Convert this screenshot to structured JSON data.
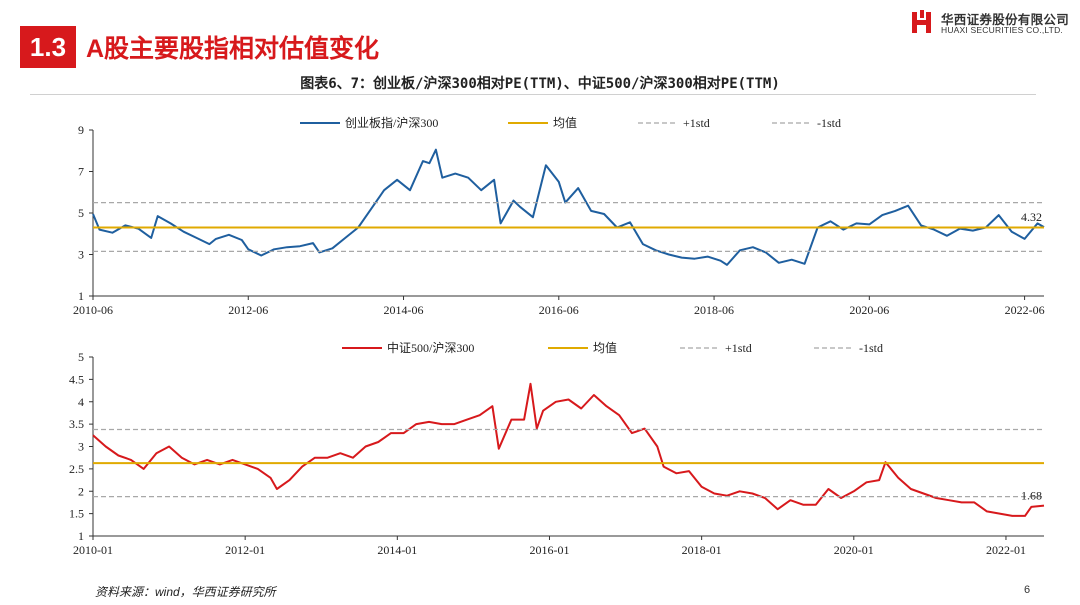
{
  "header": {
    "section_number": "1.3",
    "section_title": "A股主要股指相对估值变化",
    "brand_cn": "华西证券股份有限公司",
    "brand_en": "HUAXI SECURITIES CO.,LTD.",
    "brand_color": "#d7191c"
  },
  "figure_title": "图表6、7：创业板/沪深300相对PE(TTM)、中证500/沪深300相对PE(TTM)",
  "footer": {
    "source": "资料来源：wind，华西证券研究所",
    "page_number": "6"
  },
  "chart_data": [
    {
      "type": "line",
      "title": "",
      "xlabel": "",
      "ylabel": "",
      "ylim": [
        1,
        9
      ],
      "yticks": [
        "1",
        "3",
        "5",
        "7",
        "9"
      ],
      "yticks_values": [
        1,
        3,
        5,
        7,
        9
      ],
      "xlim": [
        "2010-06",
        "2022-09"
      ],
      "xticks": [
        "2010-06",
        "2012-06",
        "2014-06",
        "2016-06",
        "2018-06",
        "2020-06",
        "2022-06"
      ],
      "grid": false,
      "legend_position": "top",
      "legend": [
        "创业板指/沪深300",
        "均值",
        "+1std",
        "-1std"
      ],
      "end_label": "4.32",
      "series": [
        {
          "name": "创业板指/沪深300",
          "color": "#1f5f9f",
          "style": "solid",
          "points": [
            [
              "2010-06",
              4.95
            ],
            [
              "2010-07",
              4.2
            ],
            [
              "2010-09",
              4.05
            ],
            [
              "2010-11",
              4.4
            ],
            [
              "2011-01",
              4.25
            ],
            [
              "2011-03",
              3.8
            ],
            [
              "2011-04",
              4.85
            ],
            [
              "2011-06",
              4.5
            ],
            [
              "2011-08",
              4.1
            ],
            [
              "2011-10",
              3.8
            ],
            [
              "2011-12",
              3.5
            ],
            [
              "2012-01",
              3.75
            ],
            [
              "2012-03",
              3.95
            ],
            [
              "2012-05",
              3.7
            ],
            [
              "2012-06",
              3.25
            ],
            [
              "2012-08",
              2.95
            ],
            [
              "2012-10",
              3.25
            ],
            [
              "2012-12",
              3.35
            ],
            [
              "2013-02",
              3.4
            ],
            [
              "2013-04",
              3.55
            ],
            [
              "2013-05",
              3.1
            ],
            [
              "2013-07",
              3.3
            ],
            [
              "2013-09",
              3.8
            ],
            [
              "2013-11",
              4.3
            ],
            [
              "2014-01",
              5.2
            ],
            [
              "2014-03",
              6.1
            ],
            [
              "2014-05",
              6.6
            ],
            [
              "2014-07",
              6.1
            ],
            [
              "2014-09",
              7.5
            ],
            [
              "2014-10",
              7.4
            ],
            [
              "2014-11",
              8.05
            ],
            [
              "2014-12",
              6.7
            ],
            [
              "2015-02",
              6.9
            ],
            [
              "2015-04",
              6.7
            ],
            [
              "2015-06",
              6.1
            ],
            [
              "2015-08",
              6.6
            ],
            [
              "2015-09",
              4.5
            ],
            [
              "2015-11",
              5.6
            ],
            [
              "2015-12",
              5.3
            ],
            [
              "2016-02",
              4.8
            ],
            [
              "2016-04",
              7.3
            ],
            [
              "2016-06",
              6.5
            ],
            [
              "2016-07",
              5.5
            ],
            [
              "2016-09",
              6.2
            ],
            [
              "2016-11",
              5.1
            ],
            [
              "2017-01",
              4.95
            ],
            [
              "2017-03",
              4.3
            ],
            [
              "2017-05",
              4.55
            ],
            [
              "2017-07",
              3.5
            ],
            [
              "2017-09",
              3.2
            ],
            [
              "2017-11",
              3.0
            ],
            [
              "2018-01",
              2.85
            ],
            [
              "2018-03",
              2.8
            ],
            [
              "2018-05",
              2.9
            ],
            [
              "2018-07",
              2.7
            ],
            [
              "2018-08",
              2.5
            ],
            [
              "2018-10",
              3.2
            ],
            [
              "2018-12",
              3.35
            ],
            [
              "2019-02",
              3.1
            ],
            [
              "2019-04",
              2.6
            ],
            [
              "2019-06",
              2.75
            ],
            [
              "2019-08",
              2.55
            ],
            [
              "2019-10",
              4.3
            ],
            [
              "2019-12",
              4.6
            ],
            [
              "2020-02",
              4.2
            ],
            [
              "2020-04",
              4.5
            ],
            [
              "2020-06",
              4.45
            ],
            [
              "2020-08",
              4.9
            ],
            [
              "2020-10",
              5.1
            ],
            [
              "2020-12",
              5.35
            ],
            [
              "2021-02",
              4.4
            ],
            [
              "2021-04",
              4.2
            ],
            [
              "2021-06",
              3.9
            ],
            [
              "2021-08",
              4.25
            ],
            [
              "2021-10",
              4.15
            ],
            [
              "2021-12",
              4.3
            ],
            [
              "2022-02",
              4.9
            ],
            [
              "2022-04",
              4.1
            ],
            [
              "2022-06",
              3.75
            ],
            [
              "2022-08",
              4.5
            ],
            [
              "2022-09",
              4.32
            ]
          ]
        },
        {
          "name": "均值",
          "color": "#e0aa00",
          "style": "solid",
          "points": [
            [
              "2010-06",
              4.3
            ],
            [
              "2022-09",
              4.3
            ]
          ]
        },
        {
          "name": "+1std",
          "color": "#a8a8a8",
          "style": "dashed",
          "points": [
            [
              "2010-06",
              5.5
            ],
            [
              "2022-09",
              5.5
            ]
          ]
        },
        {
          "name": "-1std",
          "color": "#a8a8a8",
          "style": "dashed",
          "points": [
            [
              "2010-06",
              3.15
            ],
            [
              "2022-09",
              3.15
            ]
          ]
        }
      ]
    },
    {
      "type": "line",
      "title": "",
      "xlabel": "",
      "ylabel": "",
      "ylim": [
        1,
        5
      ],
      "yticks": [
        "1",
        "1.5",
        "2",
        "2.5",
        "3",
        "3.5",
        "4",
        "4.5",
        "5"
      ],
      "yticks_values": [
        1,
        1.5,
        2,
        2.5,
        3,
        3.5,
        4,
        4.5,
        5
      ],
      "xlim": [
        "2010-01",
        "2022-07"
      ],
      "xticks": [
        "2010-01",
        "2012-01",
        "2014-01",
        "2016-01",
        "2018-01",
        "2020-01",
        "2022-01"
      ],
      "grid": false,
      "legend_position": "top",
      "legend": [
        "中证500/沪深300",
        "均值",
        "+1std",
        "-1std"
      ],
      "end_label": "1.68",
      "series": [
        {
          "name": "中证500/沪深300",
          "color": "#d7191c",
          "style": "solid",
          "points": [
            [
              "2010-01",
              3.25
            ],
            [
              "2010-03",
              3.0
            ],
            [
              "2010-05",
              2.8
            ],
            [
              "2010-07",
              2.7
            ],
            [
              "2010-09",
              2.5
            ],
            [
              "2010-11",
              2.85
            ],
            [
              "2011-01",
              3.0
            ],
            [
              "2011-03",
              2.75
            ],
            [
              "2011-05",
              2.6
            ],
            [
              "2011-07",
              2.7
            ],
            [
              "2011-09",
              2.6
            ],
            [
              "2011-11",
              2.7
            ],
            [
              "2012-01",
              2.6
            ],
            [
              "2012-03",
              2.5
            ],
            [
              "2012-05",
              2.3
            ],
            [
              "2012-06",
              2.05
            ],
            [
              "2012-08",
              2.25
            ],
            [
              "2012-10",
              2.55
            ],
            [
              "2012-12",
              2.75
            ],
            [
              "2013-02",
              2.75
            ],
            [
              "2013-04",
              2.85
            ],
            [
              "2013-06",
              2.75
            ],
            [
              "2013-08",
              3.0
            ],
            [
              "2013-10",
              3.1
            ],
            [
              "2013-12",
              3.3
            ],
            [
              "2014-02",
              3.3
            ],
            [
              "2014-04",
              3.5
            ],
            [
              "2014-06",
              3.55
            ],
            [
              "2014-08",
              3.5
            ],
            [
              "2014-10",
              3.5
            ],
            [
              "2014-12",
              3.6
            ],
            [
              "2015-02",
              3.7
            ],
            [
              "2015-04",
              3.9
            ],
            [
              "2015-05",
              2.95
            ],
            [
              "2015-07",
              3.6
            ],
            [
              "2015-09",
              3.6
            ],
            [
              "2015-10",
              4.4
            ],
            [
              "2015-11",
              3.4
            ],
            [
              "2015-12",
              3.8
            ],
            [
              "2016-02",
              4.0
            ],
            [
              "2016-04",
              4.05
            ],
            [
              "2016-06",
              3.85
            ],
            [
              "2016-08",
              4.15
            ],
            [
              "2016-10",
              3.9
            ],
            [
              "2016-12",
              3.7
            ],
            [
              "2017-02",
              3.3
            ],
            [
              "2017-04",
              3.4
            ],
            [
              "2017-06",
              3.0
            ],
            [
              "2017-07",
              2.55
            ],
            [
              "2017-09",
              2.4
            ],
            [
              "2017-11",
              2.45
            ],
            [
              "2018-01",
              2.1
            ],
            [
              "2018-03",
              1.95
            ],
            [
              "2018-05",
              1.9
            ],
            [
              "2018-07",
              2.0
            ],
            [
              "2018-09",
              1.95
            ],
            [
              "2018-11",
              1.85
            ],
            [
              "2019-01",
              1.6
            ],
            [
              "2019-03",
              1.8
            ],
            [
              "2019-05",
              1.7
            ],
            [
              "2019-07",
              1.7
            ],
            [
              "2019-09",
              2.05
            ],
            [
              "2019-11",
              1.85
            ],
            [
              "2020-01",
              2.0
            ],
            [
              "2020-03",
              2.2
            ],
            [
              "2020-05",
              2.25
            ],
            [
              "2020-06",
              2.65
            ],
            [
              "2020-08",
              2.3
            ],
            [
              "2020-10",
              2.05
            ],
            [
              "2020-12",
              1.95
            ],
            [
              "2021-02",
              1.85
            ],
            [
              "2021-04",
              1.8
            ],
            [
              "2021-06",
              1.75
            ],
            [
              "2021-08",
              1.75
            ],
            [
              "2021-10",
              1.55
            ],
            [
              "2021-12",
              1.5
            ],
            [
              "2022-02",
              1.45
            ],
            [
              "2022-04",
              1.45
            ],
            [
              "2022-05",
              1.65
            ],
            [
              "2022-07",
              1.68
            ]
          ]
        },
        {
          "name": "均值",
          "color": "#e0aa00",
          "style": "solid",
          "points": [
            [
              "2010-01",
              2.63
            ],
            [
              "2022-07",
              2.63
            ]
          ]
        },
        {
          "name": "+1std",
          "color": "#a8a8a8",
          "style": "dashed",
          "points": [
            [
              "2010-01",
              3.38
            ],
            [
              "2022-07",
              3.38
            ]
          ]
        },
        {
          "name": "-1std",
          "color": "#a8a8a8",
          "style": "dashed",
          "points": [
            [
              "2010-01",
              1.88
            ],
            [
              "2022-07",
              1.88
            ]
          ]
        }
      ]
    }
  ]
}
